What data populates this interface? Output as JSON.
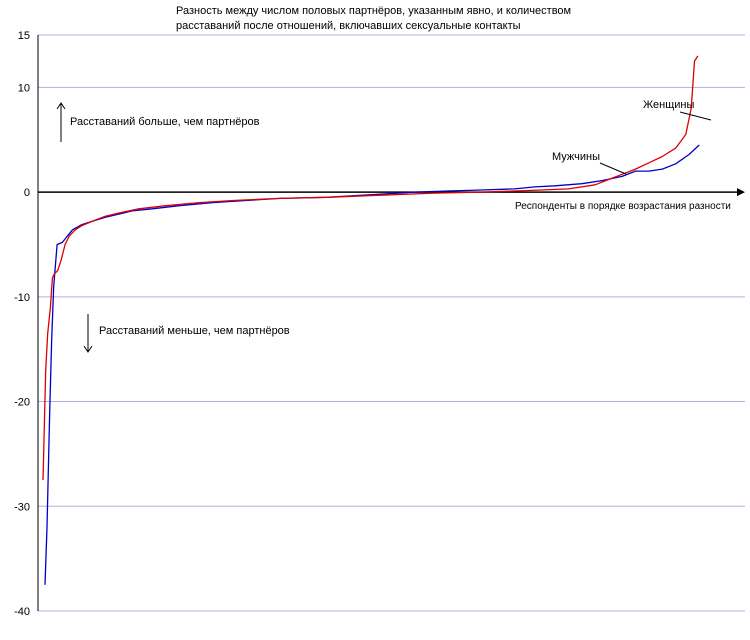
{
  "chart_data": {
    "type": "line",
    "title_lines": [
      "Разность между числом половых партнёров, указанным явно, и количеством",
      "расставаний после отношений, включавших сексуальные контакты"
    ],
    "xlabel": "Респонденты в порядке возрастания разности",
    "ylim": [
      -40,
      15
    ],
    "yticks": [
      -40,
      -30,
      -20,
      -10,
      0,
      10,
      15
    ],
    "xlim": [
      0,
      100
    ],
    "grid": "horizontal",
    "colors": {
      "men": "#0000cc",
      "women": "#dd0000",
      "grid": "#b0b0e0",
      "zero": "#000000"
    },
    "annotations": {
      "above": "Расставаний больше,  чем партнёров",
      "below": "Расставаний меньше, чем партнёров"
    },
    "series": [
      {
        "name": "Мужчины",
        "color": "#0000cc",
        "x": [
          0,
          0.3,
          0.7,
          1.0,
          1.3,
          1.8,
          2.6,
          3.2,
          4.1,
          5.5,
          7,
          9,
          11,
          13,
          16,
          20,
          25,
          30,
          35,
          42,
          50,
          55,
          60,
          65,
          70,
          73,
          76,
          80,
          83,
          86,
          88,
          90,
          92,
          94,
          96,
          97.5
        ],
        "y": [
          -37.5,
          -32,
          -21,
          -14,
          -9,
          -5,
          -4.8,
          -4.3,
          -3.6,
          -3.1,
          -2.8,
          -2.4,
          -2.1,
          -1.8,
          -1.6,
          -1.3,
          -1.0,
          -0.8,
          -0.6,
          -0.5,
          -0.2,
          0,
          0.1,
          0.2,
          0.3,
          0.5,
          0.6,
          0.8,
          1.1,
          1.5,
          2.0,
          2.0,
          2.2,
          2.7,
          3.6,
          4.5
        ]
      },
      {
        "name": "Женщины",
        "color": "#dd0000",
        "x": [
          -0.3,
          0.1,
          0.4,
          0.8,
          1.1,
          1.4,
          1.9,
          2.4,
          3.0,
          3.6,
          4.5,
          5.5,
          7,
          9,
          11,
          14,
          18,
          23,
          28,
          35,
          42,
          50,
          58,
          65,
          70,
          74,
          78,
          82,
          84,
          86,
          88,
          90,
          92,
          94,
          95.5,
          96.3,
          96.8,
          97.3
        ],
        "y": [
          -27.5,
          -17,
          -13.5,
          -11,
          -8.2,
          -7.8,
          -7.5,
          -6.5,
          -5,
          -4.2,
          -3.6,
          -3.2,
          -2.8,
          -2.3,
          -2.0,
          -1.6,
          -1.3,
          -1.0,
          -0.8,
          -0.6,
          -0.5,
          -0.3,
          -0.1,
          0,
          0.1,
          0.2,
          0.3,
          0.7,
          1.2,
          1.7,
          2.2,
          2.8,
          3.4,
          4.2,
          5.5,
          8,
          12.5,
          13
        ]
      }
    ]
  }
}
